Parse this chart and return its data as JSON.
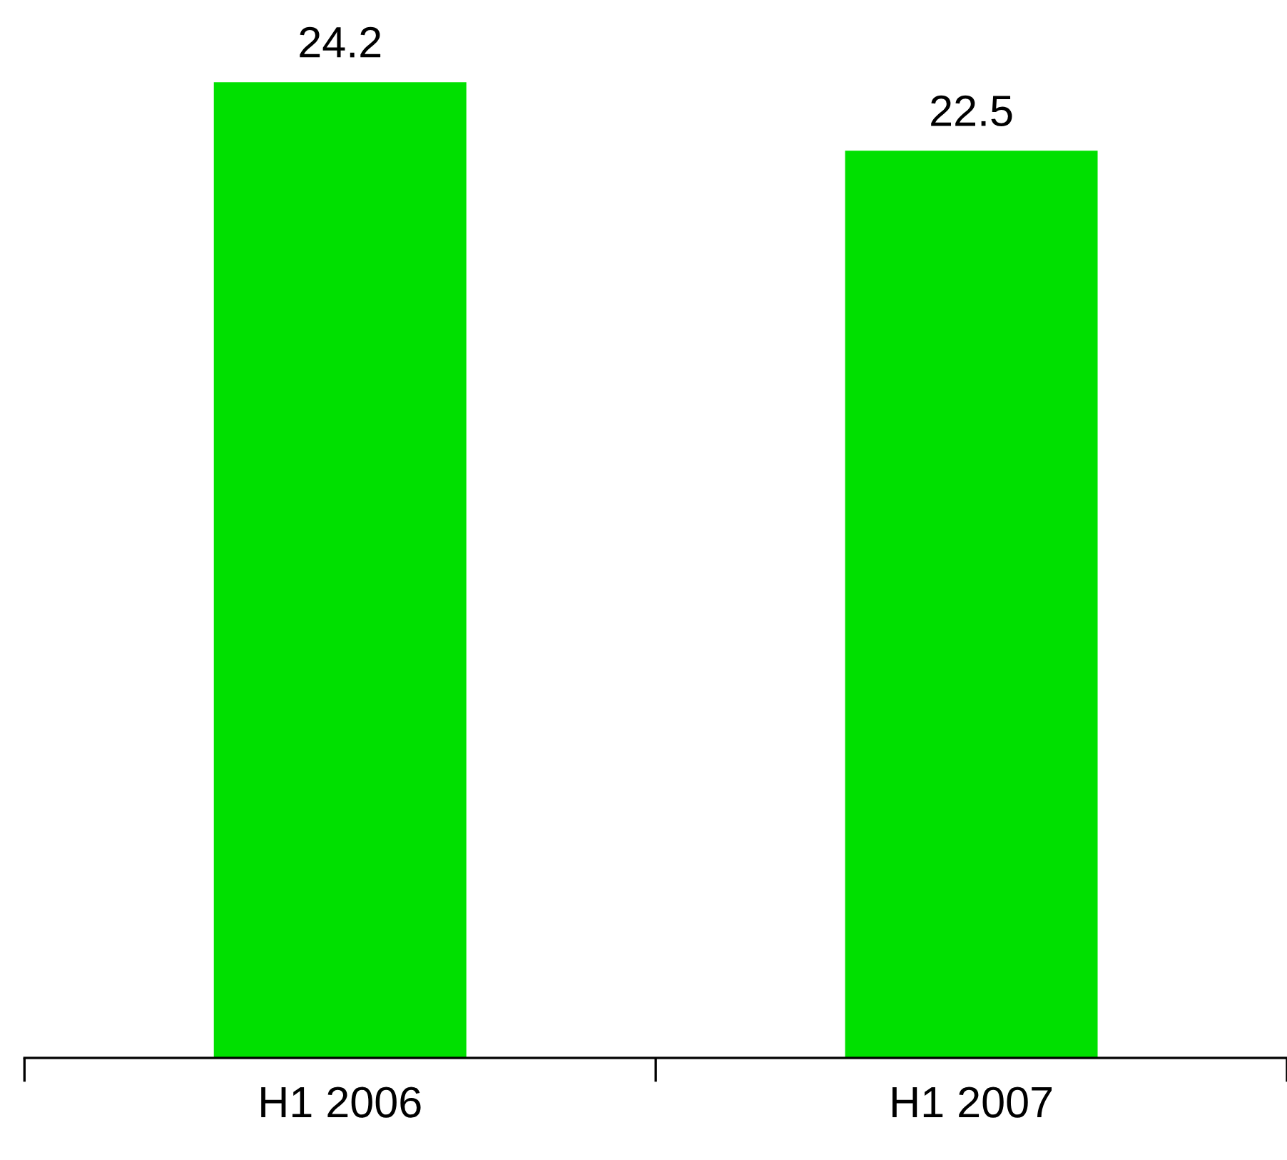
{
  "chart_data": {
    "type": "bar",
    "categories": [
      "H1 2006",
      "H1 2007"
    ],
    "values": [
      24.2,
      22.5
    ],
    "color": "#00e000",
    "data_labels": true,
    "grid": false,
    "legend": false,
    "tick_labels": "x"
  }
}
